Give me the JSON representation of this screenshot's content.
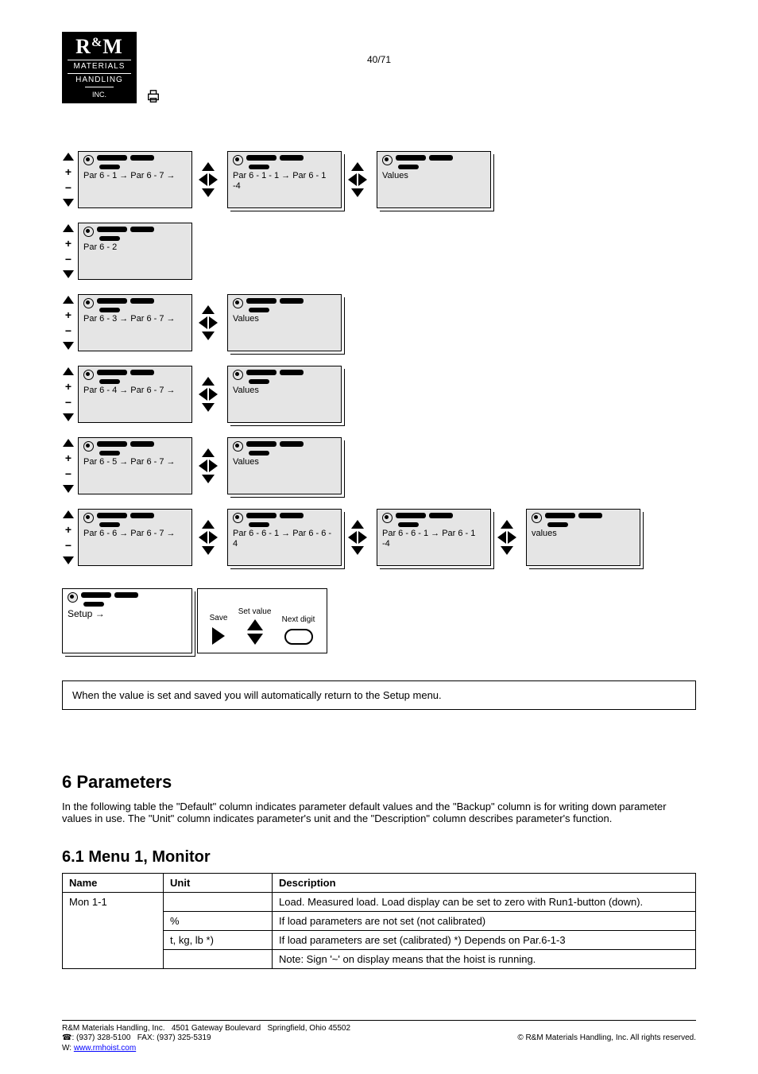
{
  "logo": {
    "line1_a": "R",
    "line1_amp": "&",
    "line1_b": "M",
    "line2": "MATERIALS",
    "line3": "HANDLING",
    "line4": "INC."
  },
  "page_number": "40/71",
  "flow": {
    "r1": {
      "c1": "Par 6 - 1 → Par 6 - 7 →",
      "c2": "Par 6 - 1 - 1 → Par 6 - 1 -4",
      "c3": "Values"
    },
    "r2": {
      "c1": "Par 6 - 2"
    },
    "r3": {
      "c1": "Par 6 - 3 → Par 6 - 7 →",
      "c2": "Values"
    },
    "r4": {
      "c1": "Par 6 - 4 → Par 6 - 7 →",
      "c2": "Values"
    },
    "r5": {
      "c1": "Par 6 - 5 → Par 6 - 7 →",
      "c2": "Values"
    },
    "r6": {
      "c1": "Par 6 - 6 → Par 6 - 7 →",
      "c2": "Par 6 - 6 - 1 → Par 6 - 6 - 4",
      "c3": "Par 6 - 6 - 1 → Par 6 - 1 -4",
      "c4": "values"
    }
  },
  "pair": {
    "left_lbl": "Setup →",
    "right_label_right": "Save",
    "right_label_ud": "Set value",
    "right_label_pill": "Next digit"
  },
  "note": "When the value is set and saved you will automatically return to the Setup menu.",
  "h2": "6  Parameters",
  "p_body": "In the following table the \"Default\" column indicates parameter default values and the \"Backup\" column is for writing down parameter values in use. The \"Unit\" column indicates parameter's unit and the \"Description\" column describes parameter's function.",
  "h3": "6.1  Menu 1, Monitor",
  "table": {
    "headers": [
      "Name",
      "Unit",
      "Description"
    ],
    "rows": [
      [
        "Mon 1-1",
        "",
        "Load. Measured load. Load display can be set to zero with Run1-button (down)."
      ],
      [
        "",
        "%",
        "If load parameters are not set (not calibrated)"
      ],
      [
        "",
        "t, kg, lb *)",
        "If load parameters are set (calibrated) *) Depends on Par.6-1-3"
      ],
      [
        "",
        "",
        "Note: Sign '~' on display means that the hoist is running."
      ]
    ],
    "name_rowspan": 4
  },
  "footer": {
    "l1a": "R&M Materials Handling, Inc.",
    "l1b": "4501 Gateway Boulevard",
    "l1c": "Springfield, Ohio 45502",
    "l2a": "☎: (937) 328-5100",
    "l2b": "FAX: (937) 325-5319",
    "l3_label": "W",
    "l3_url": "www.rmhoist.com",
    "copyright": "© R&M Materials Handling, Inc. All rights reserved."
  }
}
